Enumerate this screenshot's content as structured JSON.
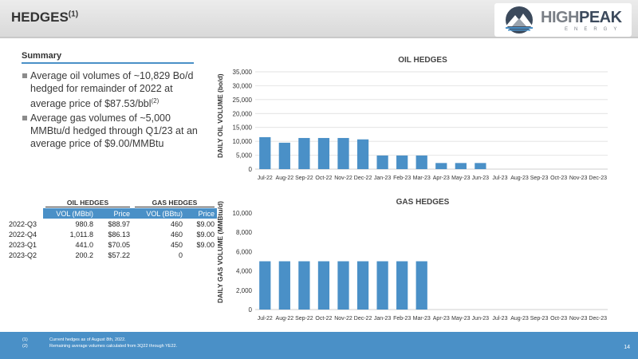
{
  "header": {
    "title": "HEDGES",
    "title_sup": "(1)"
  },
  "logo": {
    "word_high": "HIGH",
    "word_peak": "PEAK",
    "sub": "ENERGY"
  },
  "summary": {
    "title": "Summary",
    "bullet1": "Average oil volumes of ~10,829 Bo/d hedged for remainder of 2022 at average price of $87.53/bbl",
    "bullet1_sup": "(2)",
    "bullet2": "Average gas volumes of ~5,000 MMBtu/d hedged through Q1/23 at an average price of $9.00/MMBtu"
  },
  "table": {
    "group_oil": "OIL HEDGES",
    "group_gas": "GAS HEDGES",
    "col1": "VOL (MBbl)",
    "col2": "Price",
    "col3": "VOL (BBtu)",
    "col4": "Price",
    "rows": [
      {
        "label": "2022-Q3",
        "oil_vol": "980.8",
        "oil_price": "$88.97",
        "gas_vol": "460",
        "gas_price": "$9.00"
      },
      {
        "label": "2022-Q4",
        "oil_vol": "1,011.8",
        "oil_price": "$86.13",
        "gas_vol": "460",
        "gas_price": "$9.00"
      },
      {
        "label": "2023-Q1",
        "oil_vol": "441.0",
        "oil_price": "$70.05",
        "gas_vol": "450",
        "gas_price": "$9.00"
      },
      {
        "label": "2023-Q2",
        "oil_vol": "200.2",
        "oil_price": "$57.22",
        "gas_vol": "0",
        "gas_price": ""
      }
    ]
  },
  "chart_data": [
    {
      "type": "bar",
      "title": "OIL HEDGES",
      "ylabel": "DAILY OIL VOLUME (bo/d)",
      "xlabel": "",
      "color": "#4a90c7",
      "ylim": [
        0,
        35000
      ],
      "yticks": [
        "0",
        "5,000",
        "10,000",
        "15,000",
        "20,000",
        "25,000",
        "30,000",
        "35,000"
      ],
      "categories": [
        "Jul-22",
        "Aug-22",
        "Sep-22",
        "Oct-22",
        "Nov-22",
        "Dec-22",
        "Jan-23",
        "Feb-23",
        "Mar-23",
        "Apr-23",
        "May-23",
        "Jun-23",
        "Jul-23",
        "Aug-23",
        "Sep-23",
        "Oct-23",
        "Nov-23",
        "Dec-23"
      ],
      "values": [
        11500,
        9500,
        11200,
        11200,
        11200,
        10700,
        4900,
        4900,
        4900,
        2200,
        2200,
        2200,
        0,
        0,
        0,
        0,
        0,
        0
      ],
      "grid": true
    },
    {
      "type": "bar",
      "title": "GAS HEDGES",
      "ylabel": "DAILY GAS VOLUME (MMBtu/d)",
      "xlabel": "",
      "color": "#4a90c7",
      "ylim": [
        0,
        10000
      ],
      "yticks": [
        "0",
        "2,000",
        "4,000",
        "6,000",
        "8,000",
        "10,000"
      ],
      "categories": [
        "Jul-22",
        "Aug-22",
        "Sep-22",
        "Oct-22",
        "Nov-22",
        "Dec-22",
        "Jan-23",
        "Feb-23",
        "Mar-23",
        "Apr-23",
        "May-23",
        "Jun-23",
        "Jul-23",
        "Aug-23",
        "Sep-23",
        "Oct-23",
        "Nov-23",
        "Dec-23"
      ],
      "values": [
        5000,
        5000,
        5000,
        5000,
        5000,
        5000,
        5000,
        5000,
        5000,
        0,
        0,
        0,
        0,
        0,
        0,
        0,
        0,
        0
      ],
      "grid": false
    }
  ],
  "footer": {
    "notes": [
      {
        "num": "(1)",
        "text": "Current hedges as of August 8th, 2022."
      },
      {
        "num": "(2)",
        "text": "Remaining average volumes calculated from 3Q22 through YE22."
      }
    ],
    "page": "14"
  }
}
